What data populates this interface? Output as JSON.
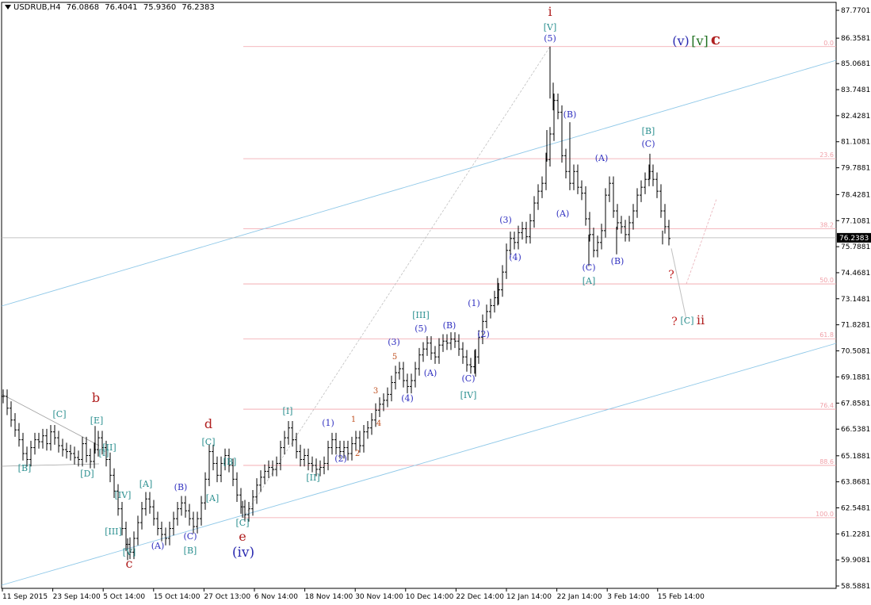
{
  "header": {
    "symbol": "USDRUB,H4",
    "open": "76.0868",
    "high": "76.4041",
    "low": "75.9360",
    "close": "76.2383"
  },
  "chart_data": {
    "type": "candlestick",
    "y_ticks": [
      "87.7701",
      "86.3581",
      "85.0681",
      "83.7481",
      "82.4281",
      "81.1081",
      "79.7881",
      "78.4281",
      "77.1081",
      "75.7881",
      "74.4681",
      "73.1481",
      "71.8281",
      "70.5081",
      "69.1881",
      "67.8581",
      "66.5381",
      "65.1881",
      "63.8681",
      "62.5481",
      "61.2281",
      "59.9081",
      "58.5881"
    ],
    "y_range": [
      58.5881,
      87.7701
    ],
    "x_ticks": [
      "11 Sep 2015",
      "23 Sep 14:00",
      "5 Oct 14:00",
      "15 Oct 14:00",
      "27 Oct 13:00",
      "6 Nov 14:00",
      "18 Nov 14:00",
      "30 Nov 14:00",
      "10 Dec 14:00",
      "22 Dec 14:00",
      "12 Jan 14:00",
      "22 Jan 14:00",
      "3 Feb 14:00",
      "15 Feb 14:00"
    ],
    "current_price": "76.2383",
    "fib_levels": [
      {
        "label": "0.0",
        "value": 85.93
      },
      {
        "label": "23.6",
        "value": 80.25
      },
      {
        "label": "38.2",
        "value": 76.7
      },
      {
        "label": "50.0",
        "value": 73.9
      },
      {
        "label": "61.8",
        "value": 71.12
      },
      {
        "label": "76.4",
        "value": 67.55
      },
      {
        "label": "88.6",
        "value": 64.7
      },
      {
        "label": "100.0",
        "value": 62.05
      }
    ],
    "price_series": [
      [
        0,
        68.2
      ],
      [
        5,
        67.6
      ],
      [
        10,
        67.0
      ],
      [
        15,
        66.5
      ],
      [
        20,
        66.0
      ],
      [
        25,
        65.3
      ],
      [
        30,
        65.0
      ],
      [
        35,
        65.6
      ],
      [
        40,
        66.0
      ],
      [
        45,
        65.9
      ],
      [
        50,
        66.2
      ],
      [
        55,
        65.8
      ],
      [
        60,
        66.4
      ],
      [
        65,
        66.1
      ],
      [
        70,
        65.7
      ],
      [
        75,
        65.5
      ],
      [
        80,
        65.4
      ],
      [
        85,
        65.3
      ],
      [
        90,
        65.1
      ],
      [
        95,
        65.0
      ],
      [
        100,
        65.8
      ],
      [
        105,
        65.2
      ],
      [
        110,
        64.9
      ],
      [
        115,
        65.5
      ],
      [
        120,
        66.1
      ],
      [
        125,
        65.6
      ],
      [
        130,
        65.0
      ],
      [
        135,
        64.2
      ],
      [
        140,
        63.4
      ],
      [
        145,
        62.5
      ],
      [
        150,
        61.5
      ],
      [
        155,
        60.7
      ],
      [
        160,
        60.3
      ],
      [
        165,
        61.0
      ],
      [
        170,
        61.8
      ],
      [
        175,
        62.5
      ],
      [
        180,
        63.0
      ],
      [
        185,
        62.6
      ],
      [
        190,
        62.0
      ],
      [
        195,
        61.5
      ],
      [
        200,
        61.2
      ],
      [
        205,
        61.0
      ],
      [
        210,
        61.5
      ],
      [
        215,
        62.0
      ],
      [
        220,
        62.5
      ],
      [
        225,
        62.8
      ],
      [
        230,
        62.4
      ],
      [
        235,
        62.0
      ],
      [
        240,
        61.6
      ],
      [
        245,
        62.0
      ],
      [
        250,
        62.8
      ],
      [
        255,
        64.0
      ],
      [
        260,
        65.4
      ],
      [
        265,
        64.8
      ],
      [
        270,
        64.2
      ],
      [
        275,
        64.8
      ],
      [
        280,
        65.2
      ],
      [
        285,
        64.7
      ],
      [
        290,
        64.0
      ],
      [
        295,
        63.2
      ],
      [
        300,
        62.6
      ],
      [
        305,
        62.2
      ],
      [
        310,
        62.5
      ],
      [
        315,
        63.1
      ],
      [
        320,
        63.7
      ],
      [
        325,
        64.1
      ],
      [
        330,
        64.4
      ],
      [
        335,
        64.6
      ],
      [
        340,
        64.5
      ],
      [
        345,
        64.8
      ],
      [
        350,
        65.6
      ],
      [
        355,
        66.1
      ],
      [
        360,
        66.6
      ],
      [
        365,
        66.0
      ],
      [
        370,
        65.4
      ],
      [
        375,
        65.0
      ],
      [
        380,
        65.2
      ],
      [
        385,
        64.8
      ],
      [
        390,
        64.7
      ],
      [
        395,
        64.5
      ],
      [
        400,
        64.6
      ],
      [
        405,
        64.8
      ],
      [
        410,
        65.6
      ],
      [
        415,
        66.0
      ],
      [
        420,
        65.6
      ],
      [
        425,
        65.4
      ],
      [
        430,
        65.6
      ],
      [
        435,
        65.3
      ],
      [
        440,
        65.8
      ],
      [
        445,
        66.1
      ],
      [
        450,
        65.7
      ],
      [
        455,
        66.4
      ],
      [
        460,
        66.6
      ],
      [
        465,
        67.0
      ],
      [
        470,
        67.5
      ],
      [
        475,
        67.8
      ],
      [
        480,
        68.0
      ],
      [
        485,
        68.3
      ],
      [
        490,
        68.9
      ],
      [
        495,
        69.4
      ],
      [
        500,
        69.6
      ],
      [
        505,
        69.0
      ],
      [
        510,
        68.7
      ],
      [
        515,
        69.0
      ],
      [
        520,
        69.6
      ],
      [
        525,
        70.3
      ],
      [
        530,
        70.6
      ],
      [
        535,
        70.9
      ],
      [
        540,
        70.4
      ],
      [
        545,
        70.2
      ],
      [
        550,
        70.8
      ],
      [
        555,
        71.0
      ],
      [
        560,
        70.9
      ],
      [
        565,
        71.1
      ],
      [
        570,
        71.0
      ],
      [
        575,
        70.6
      ],
      [
        580,
        70.2
      ],
      [
        585,
        69.8
      ],
      [
        590,
        69.7
      ],
      [
        595,
        70.2
      ],
      [
        600,
        71.2
      ],
      [
        605,
        72.0
      ],
      [
        610,
        72.5
      ],
      [
        615,
        72.8
      ],
      [
        620,
        73.2
      ],
      [
        625,
        73.6
      ],
      [
        630,
        74.5
      ],
      [
        635,
        75.6
      ],
      [
        640,
        76.2
      ],
      [
        645,
        76.0
      ],
      [
        650,
        76.5
      ],
      [
        655,
        76.7
      ],
      [
        660,
        76.3
      ],
      [
        665,
        77.1
      ],
      [
        670,
        78.0
      ],
      [
        675,
        78.6
      ],
      [
        680,
        79.0
      ],
      [
        685,
        80.2
      ],
      [
        690,
        81.5
      ],
      [
        695,
        83.2
      ],
      [
        700,
        82.6
      ],
      [
        705,
        80.4
      ],
      [
        710,
        79.6
      ],
      [
        715,
        79.0
      ],
      [
        720,
        79.6
      ],
      [
        725,
        78.8
      ],
      [
        730,
        78.5
      ],
      [
        735,
        77.2
      ],
      [
        740,
        76.4
      ],
      [
        745,
        75.6
      ],
      [
        750,
        76.0
      ],
      [
        755,
        76.6
      ],
      [
        760,
        78.4
      ],
      [
        765,
        79.0
      ],
      [
        770,
        77.6
      ],
      [
        775,
        77.0
      ],
      [
        780,
        76.8
      ],
      [
        785,
        76.4
      ],
      [
        790,
        77.0
      ],
      [
        795,
        77.6
      ],
      [
        800,
        78.4
      ],
      [
        805,
        78.8
      ],
      [
        810,
        79.2
      ],
      [
        815,
        79.6
      ],
      [
        820,
        79.2
      ],
      [
        825,
        78.6
      ],
      [
        830,
        77.6
      ],
      [
        835,
        76.8
      ],
      [
        840,
        76.2
      ]
    ],
    "candles": [
      {
        "x": 694,
        "hi": 85.93,
        "lo": 83.3
      },
      {
        "x": 698,
        "hi": 84.1,
        "lo": 82.7
      },
      {
        "x": 690,
        "hi": 81.7,
        "lo": 80.1
      },
      {
        "x": 719,
        "hi": 82.1,
        "lo": 79.0
      },
      {
        "x": 820,
        "hi": 80.5,
        "lo": 79.2
      },
      {
        "x": 743,
        "hi": 76.4,
        "lo": 74.8
      },
      {
        "x": 778,
        "hi": 76.8,
        "lo": 75.4
      },
      {
        "x": 306,
        "hi": 62.9,
        "lo": 62.05
      },
      {
        "x": 161,
        "hi": 61.0,
        "lo": 59.9
      },
      {
        "x": 120,
        "hi": 66.7,
        "lo": 65.3
      },
      {
        "x": 600,
        "hi": 70.6,
        "lo": 69.2
      },
      {
        "x": 628,
        "hi": 74.2,
        "lo": 72.8
      },
      {
        "x": 836,
        "hi": 76.6,
        "lo": 75.9
      }
    ],
    "labels": [
      {
        "text": "i",
        "color": "#b02020",
        "x": 694,
        "y": 20,
        "size": 16
      },
      {
        "text": "[V]",
        "color": "#2a8f8f",
        "x": 694,
        "y": 38,
        "size": 11
      },
      {
        "text": "(5)",
        "color": "#3030c0",
        "x": 694,
        "y": 52,
        "size": 11
      },
      {
        "text": "(v)",
        "color": "#2a2ab0",
        "x": 859,
        "y": 57,
        "size": 16
      },
      {
        "text": "[v]",
        "color": "#207020",
        "x": 883,
        "y": 57,
        "size": 16
      },
      {
        "text": "c",
        "color": "#b02020",
        "x": 903,
        "y": 56,
        "size": 20
      },
      {
        "text": "(B)",
        "color": "#3030c0",
        "x": 719,
        "y": 148,
        "size": 11
      },
      {
        "text": "[B]",
        "color": "#2a8f8f",
        "x": 818,
        "y": 169,
        "size": 11
      },
      {
        "text": "(C)",
        "color": "#3030c0",
        "x": 818,
        "y": 185,
        "size": 11
      },
      {
        "text": "(A)",
        "color": "#3030c0",
        "x": 759,
        "y": 203,
        "size": 11
      },
      {
        "text": "(A)",
        "color": "#3030c0",
        "x": 710,
        "y": 273,
        "size": 11
      },
      {
        "text": "(3)",
        "color": "#3030c0",
        "x": 638,
        "y": 281,
        "size": 11
      },
      {
        "text": "(4)",
        "color": "#3030c0",
        "x": 650,
        "y": 328,
        "size": 11
      },
      {
        "text": "(B)",
        "color": "#3030c0",
        "x": 779,
        "y": 333,
        "size": 11
      },
      {
        "text": "(C)",
        "color": "#3030c0",
        "x": 743,
        "y": 341,
        "size": 11
      },
      {
        "text": "[A]",
        "color": "#2a8f8f",
        "x": 743,
        "y": 358,
        "size": 11
      },
      {
        "text": "?",
        "color": "#c02020",
        "x": 847,
        "y": 351,
        "size": 14
      },
      {
        "text": "(1)",
        "color": "#3030c0",
        "x": 598,
        "y": 386,
        "size": 11
      },
      {
        "text": "[III]",
        "color": "#2a8f8f",
        "x": 531,
        "y": 401,
        "size": 11
      },
      {
        "text": "?",
        "color": "#c02020",
        "x": 851,
        "y": 410,
        "size": 14
      },
      {
        "text": "[C]",
        "color": "#2a8f8f",
        "x": 867,
        "y": 408,
        "size": 11
      },
      {
        "text": "ii",
        "color": "#b02020",
        "x": 884,
        "y": 409,
        "size": 16
      },
      {
        "text": "(B)",
        "color": "#3030c0",
        "x": 567,
        "y": 414,
        "size": 11
      },
      {
        "text": "(5)",
        "color": "#3030c0",
        "x": 531,
        "y": 418,
        "size": 11
      },
      {
        "text": "(2)",
        "color": "#3030c0",
        "x": 610,
        "y": 425,
        "size": 11
      },
      {
        "text": "(3)",
        "color": "#3030c0",
        "x": 497,
        "y": 435,
        "size": 11
      },
      {
        "text": "5",
        "color": "#c05020",
        "x": 498,
        "y": 453,
        "size": 10
      },
      {
        "text": "(A)",
        "color": "#3030c0",
        "x": 543,
        "y": 474,
        "size": 11
      },
      {
        "text": "(C)",
        "color": "#3030c0",
        "x": 591,
        "y": 481,
        "size": 11
      },
      {
        "text": "3",
        "color": "#c05020",
        "x": 474,
        "y": 496,
        "size": 10
      },
      {
        "text": "[IV]",
        "color": "#2a8f8f",
        "x": 591,
        "y": 502,
        "size": 11
      },
      {
        "text": "(4)",
        "color": "#3030c0",
        "x": 514,
        "y": 506,
        "size": 11
      },
      {
        "text": "b",
        "color": "#b02020",
        "x": 121,
        "y": 507,
        "size": 16
      },
      {
        "text": "[I]",
        "color": "#2a8f8f",
        "x": 363,
        "y": 522,
        "size": 11
      },
      {
        "text": "[C]",
        "color": "#2a8f8f",
        "x": 75,
        "y": 526,
        "size": 11
      },
      {
        "text": "1",
        "color": "#c05020",
        "x": 446,
        "y": 532,
        "size": 10
      },
      {
        "text": "[E]",
        "color": "#2a8f8f",
        "x": 122,
        "y": 534,
        "size": 11
      },
      {
        "text": "(1)",
        "color": "#3030c0",
        "x": 414,
        "y": 537,
        "size": 11
      },
      {
        "text": "4",
        "color": "#c05020",
        "x": 478,
        "y": 537,
        "size": 10
      },
      {
        "text": "d",
        "color": "#b02020",
        "x": 263,
        "y": 540,
        "size": 16
      },
      {
        "text": "[C]",
        "color": "#2a8f8f",
        "x": 263,
        "y": 561,
        "size": 11
      },
      {
        "text": "[II]",
        "color": "#2a8f8f",
        "x": 138,
        "y": 568,
        "size": 11
      },
      {
        "text": "2",
        "color": "#c05020",
        "x": 451,
        "y": 575,
        "size": 10
      },
      {
        "text": "[I]",
        "color": "#2a8f8f",
        "x": 131,
        "y": 575,
        "size": 11
      },
      {
        "text": "(2)",
        "color": "#3030c0",
        "x": 430,
        "y": 582,
        "size": 11
      },
      {
        "text": "[B]",
        "color": "#2a8f8f",
        "x": 290,
        "y": 586,
        "size": 11
      },
      {
        "text": "[B]",
        "color": "#2a8f8f",
        "x": 31,
        "y": 594,
        "size": 11
      },
      {
        "text": "[D]",
        "color": "#2a8f8f",
        "x": 110,
        "y": 601,
        "size": 11
      },
      {
        "text": "[II]",
        "color": "#2a8f8f",
        "x": 395,
        "y": 606,
        "size": 11
      },
      {
        "text": "[A]",
        "color": "#2a8f8f",
        "x": 184,
        "y": 614,
        "size": 11
      },
      {
        "text": "(B)",
        "color": "#3030c0",
        "x": 228,
        "y": 618,
        "size": 11
      },
      {
        "text": "[IV]",
        "color": "#2a8f8f",
        "x": 155,
        "y": 628,
        "size": 11
      },
      {
        "text": "[A]",
        "color": "#2a8f8f",
        "x": 268,
        "y": 632,
        "size": 11
      },
      {
        "text": "[C]",
        "color": "#2a8f8f",
        "x": 306,
        "y": 663,
        "size": 11
      },
      {
        "text": "[III]",
        "color": "#2a8f8f",
        "x": 143,
        "y": 674,
        "size": 11
      },
      {
        "text": "(C)",
        "color": "#3030c0",
        "x": 240,
        "y": 680,
        "size": 11
      },
      {
        "text": "e",
        "color": "#b02020",
        "x": 306,
        "y": 682,
        "size": 16
      },
      {
        "text": "(A)",
        "color": "#3030c0",
        "x": 199,
        "y": 692,
        "size": 11
      },
      {
        "text": "[B]",
        "color": "#2a8f8f",
        "x": 240,
        "y": 698,
        "size": 11
      },
      {
        "text": "[V]",
        "color": "#2a8f8f",
        "x": 163,
        "y": 700,
        "size": 11
      },
      {
        "text": "(iv)",
        "color": "#2a2ab0",
        "x": 307,
        "y": 702,
        "size": 17
      },
      {
        "text": "c",
        "color": "#b02020",
        "x": 163,
        "y": 716,
        "size": 16
      }
    ]
  }
}
